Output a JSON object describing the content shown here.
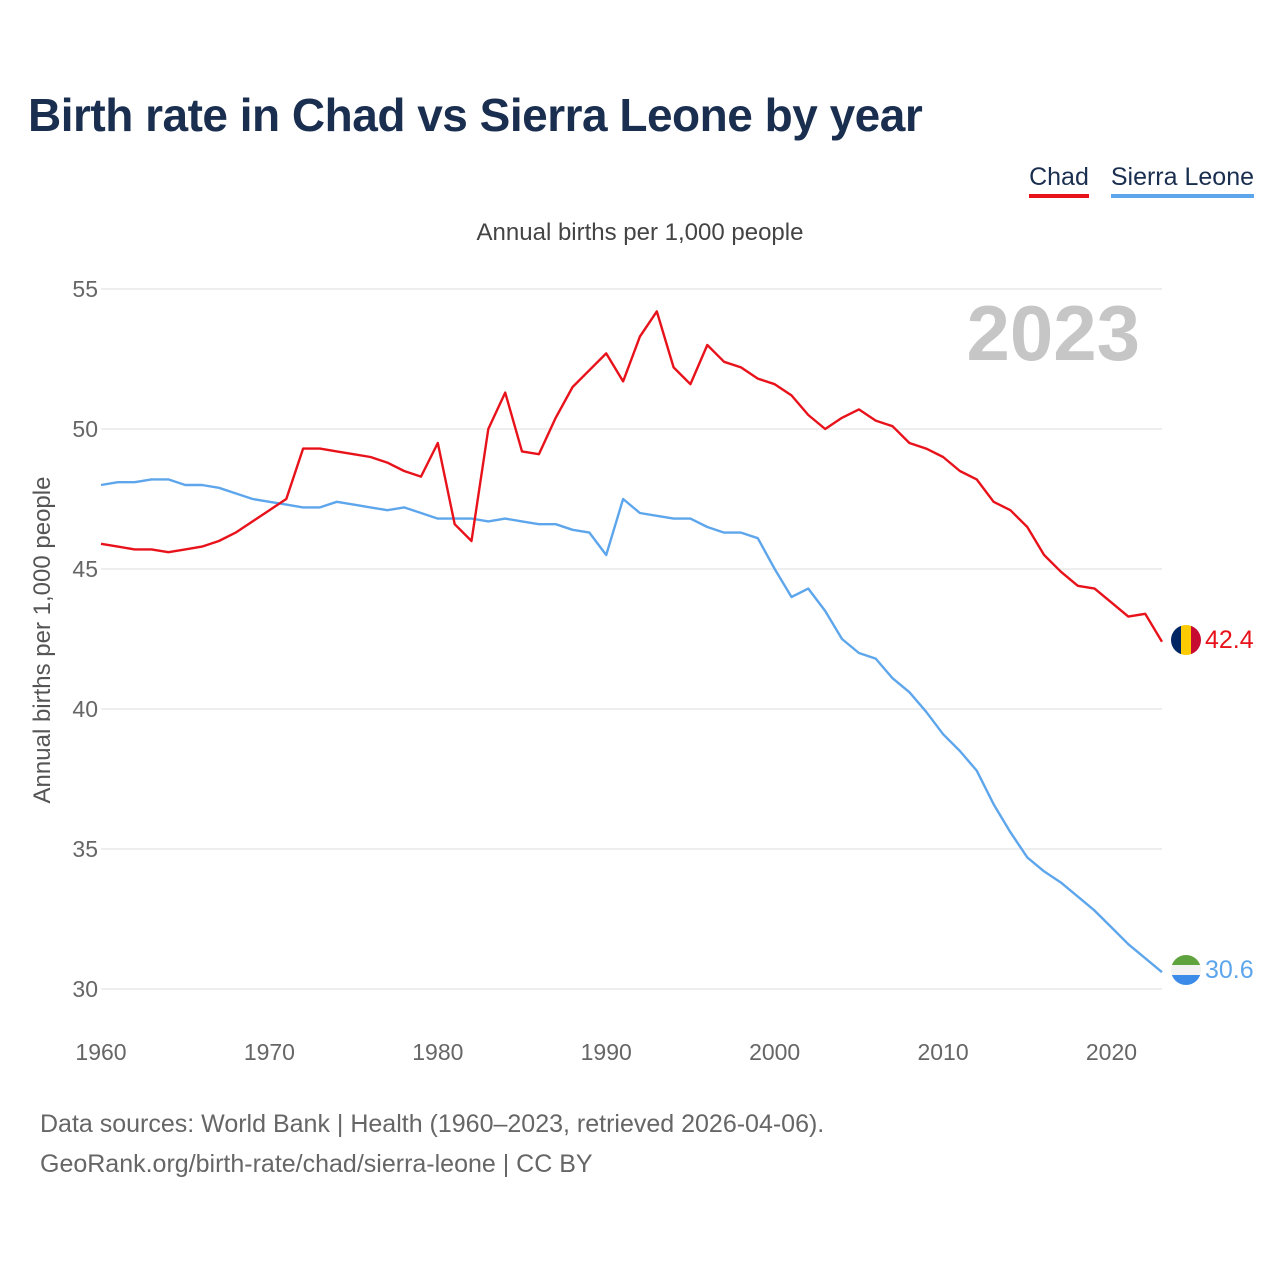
{
  "title": "Birth rate in Chad vs Sierra Leone by year",
  "legend": [
    {
      "label": "Chad",
      "color": "#e8121b"
    },
    {
      "label": "Sierra Leone",
      "color": "#5ea6ec"
    }
  ],
  "footer": {
    "line1": "Data sources: World Bank | Health (1960–2023, retrieved 2026-04-06).",
    "line2": "GeoRank.org/birth-rate/chad/sierra-leone | CC BY"
  },
  "chart_data": {
    "type": "line",
    "title": "Birth rate in Chad vs Sierra Leone by year",
    "subtitle": "Annual births per 1,000 people",
    "xlabel": "",
    "ylabel": "Annual births per 1,000 people",
    "current_year_label": "2023",
    "xlim": [
      1960,
      2023
    ],
    "ylim": [
      30,
      55
    ],
    "x_ticks": [
      1960,
      1970,
      1980,
      1990,
      2000,
      2010,
      2020
    ],
    "y_ticks": [
      30,
      35,
      40,
      45,
      50,
      55
    ],
    "grid": true,
    "x": [
      1960,
      1961,
      1962,
      1963,
      1964,
      1965,
      1966,
      1967,
      1968,
      1969,
      1970,
      1971,
      1972,
      1973,
      1974,
      1975,
      1976,
      1977,
      1978,
      1979,
      1980,
      1981,
      1982,
      1983,
      1984,
      1985,
      1986,
      1987,
      1988,
      1989,
      1990,
      1991,
      1992,
      1993,
      1994,
      1995,
      1996,
      1997,
      1998,
      1999,
      2000,
      2001,
      2002,
      2003,
      2004,
      2005,
      2006,
      2007,
      2008,
      2009,
      2010,
      2011,
      2012,
      2013,
      2014,
      2015,
      2016,
      2017,
      2018,
      2019,
      2020,
      2021,
      2022,
      2023
    ],
    "series": [
      {
        "name": "Chad",
        "color": "#e8121b",
        "end_label": "42.4",
        "flag": "chad-flag",
        "values": [
          45.9,
          45.8,
          45.7,
          45.7,
          45.6,
          45.7,
          45.8,
          46.0,
          46.3,
          46.7,
          47.1,
          47.5,
          49.3,
          49.3,
          49.2,
          49.1,
          49.0,
          48.8,
          48.5,
          48.3,
          49.5,
          46.6,
          46.0,
          50.0,
          51.3,
          49.2,
          49.1,
          50.4,
          51.5,
          52.1,
          52.7,
          51.7,
          53.3,
          54.2,
          52.2,
          51.6,
          53.0,
          52.4,
          52.2,
          51.8,
          51.6,
          51.2,
          50.5,
          50.0,
          50.4,
          50.7,
          50.3,
          50.1,
          49.5,
          49.3,
          49.0,
          48.5,
          48.2,
          47.4,
          47.1,
          46.5,
          45.5,
          44.9,
          44.4,
          44.3,
          43.8,
          43.3,
          43.4,
          42.4
        ]
      },
      {
        "name": "Sierra Leone",
        "color": "#5ea6ec",
        "end_label": "30.6",
        "flag": "sierra-leone-flag",
        "values": [
          48.0,
          48.1,
          48.1,
          48.2,
          48.2,
          48.0,
          48.0,
          47.9,
          47.7,
          47.5,
          47.4,
          47.3,
          47.2,
          47.2,
          47.4,
          47.3,
          47.2,
          47.1,
          47.2,
          47.0,
          46.8,
          46.8,
          46.8,
          46.7,
          46.8,
          46.7,
          46.6,
          46.6,
          46.4,
          46.3,
          45.5,
          47.5,
          47.0,
          46.9,
          46.8,
          46.8,
          46.5,
          46.3,
          46.3,
          46.1,
          45.0,
          44.0,
          44.3,
          43.5,
          42.5,
          42.0,
          41.8,
          41.1,
          40.6,
          39.9,
          39.1,
          38.5,
          37.8,
          36.6,
          35.6,
          34.7,
          34.2,
          33.8,
          33.3,
          32.8,
          32.2,
          31.6,
          31.1,
          30.6
        ]
      }
    ]
  }
}
